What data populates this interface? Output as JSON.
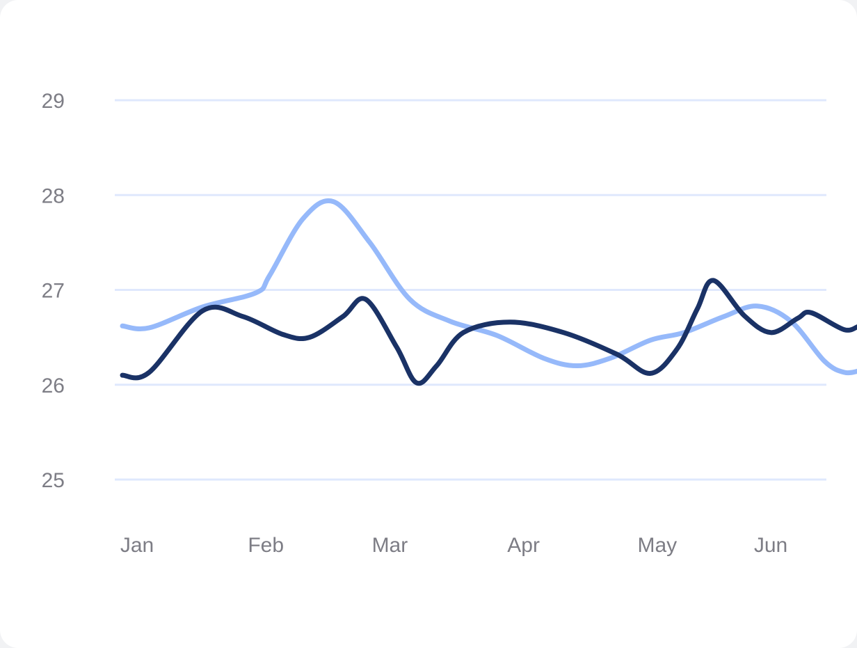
{
  "chart_data": {
    "type": "line",
    "title": "",
    "xlabel": "",
    "ylabel": "",
    "categories": [
      "Jan",
      "Feb",
      "Mar",
      "Apr",
      "May",
      "Jun"
    ],
    "y_ticks": [
      "29",
      "28",
      "27",
      "26",
      "25"
    ],
    "ylim": [
      25,
      29
    ],
    "grid": true,
    "legend": "none",
    "series": [
      {
        "color": "#96b9fa",
        "points": [
          [
            0.0,
            26.62
          ],
          [
            0.2,
            26.6
          ],
          [
            0.6,
            26.82
          ],
          [
            1.0,
            26.97
          ],
          [
            1.1,
            27.15
          ],
          [
            1.35,
            27.75
          ],
          [
            1.58,
            27.93
          ],
          [
            1.85,
            27.5
          ],
          [
            2.15,
            26.9
          ],
          [
            2.45,
            26.67
          ],
          [
            2.8,
            26.52
          ],
          [
            3.15,
            26.28
          ],
          [
            3.4,
            26.2
          ],
          [
            3.65,
            26.28
          ],
          [
            3.95,
            26.47
          ],
          [
            4.2,
            26.55
          ],
          [
            4.5,
            26.72
          ],
          [
            4.75,
            26.83
          ],
          [
            5.0,
            26.67
          ],
          [
            5.25,
            26.25
          ],
          [
            5.4,
            26.13
          ],
          [
            5.52,
            26.15
          ]
        ]
      },
      {
        "color": "#1a3266",
        "points": [
          [
            0.0,
            26.1
          ],
          [
            0.2,
            26.13
          ],
          [
            0.6,
            26.78
          ],
          [
            0.9,
            26.72
          ],
          [
            1.2,
            26.53
          ],
          [
            1.4,
            26.5
          ],
          [
            1.65,
            26.72
          ],
          [
            1.82,
            26.9
          ],
          [
            2.05,
            26.4
          ],
          [
            2.2,
            26.02
          ],
          [
            2.35,
            26.2
          ],
          [
            2.55,
            26.55
          ],
          [
            2.9,
            26.66
          ],
          [
            3.3,
            26.55
          ],
          [
            3.7,
            26.32
          ],
          [
            3.95,
            26.12
          ],
          [
            4.15,
            26.38
          ],
          [
            4.3,
            26.8
          ],
          [
            4.42,
            27.1
          ],
          [
            4.65,
            26.73
          ],
          [
            4.85,
            26.55
          ],
          [
            5.05,
            26.7
          ],
          [
            5.15,
            26.76
          ],
          [
            5.4,
            26.58
          ],
          [
            5.52,
            26.62
          ],
          [
            5.6,
            26.58
          ]
        ]
      }
    ]
  }
}
